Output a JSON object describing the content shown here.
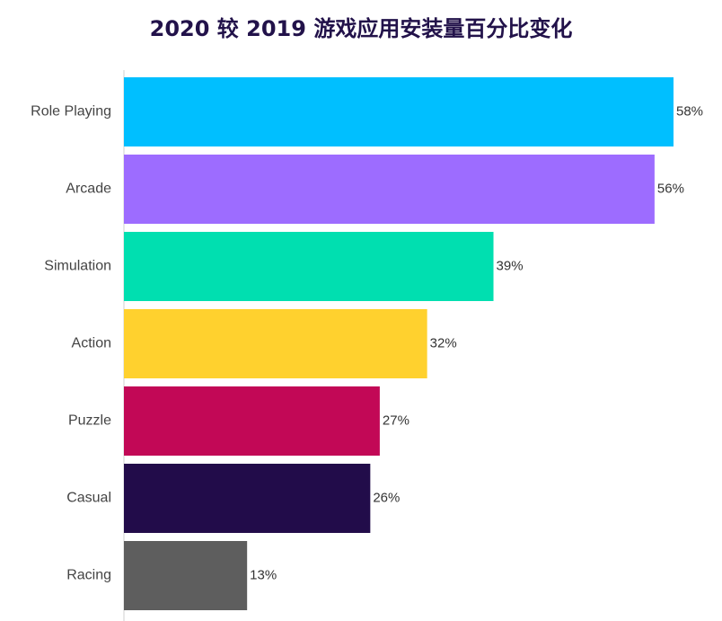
{
  "chart_data": {
    "type": "bar",
    "orientation": "horizontal",
    "title": "2020 较 2019 游戏应用安装量百分比变化",
    "categories": [
      "Role Playing",
      "Arcade",
      "Simulation",
      "Action",
      "Puzzle",
      "Casual",
      "Racing"
    ],
    "values": [
      58,
      56,
      39,
      32,
      27,
      26,
      13
    ],
    "value_labels": [
      "58%",
      "56%",
      "39%",
      "32%",
      "27%",
      "26%",
      "13%"
    ],
    "colors": [
      "#00bfff",
      "#9d6cff",
      "#00dfb0",
      "#ffd12e",
      "#c20856",
      "#220c4a",
      "#5e5e5e"
    ],
    "xlim": [
      0,
      58
    ],
    "unit": "%",
    "grid": false,
    "legend": "none"
  }
}
